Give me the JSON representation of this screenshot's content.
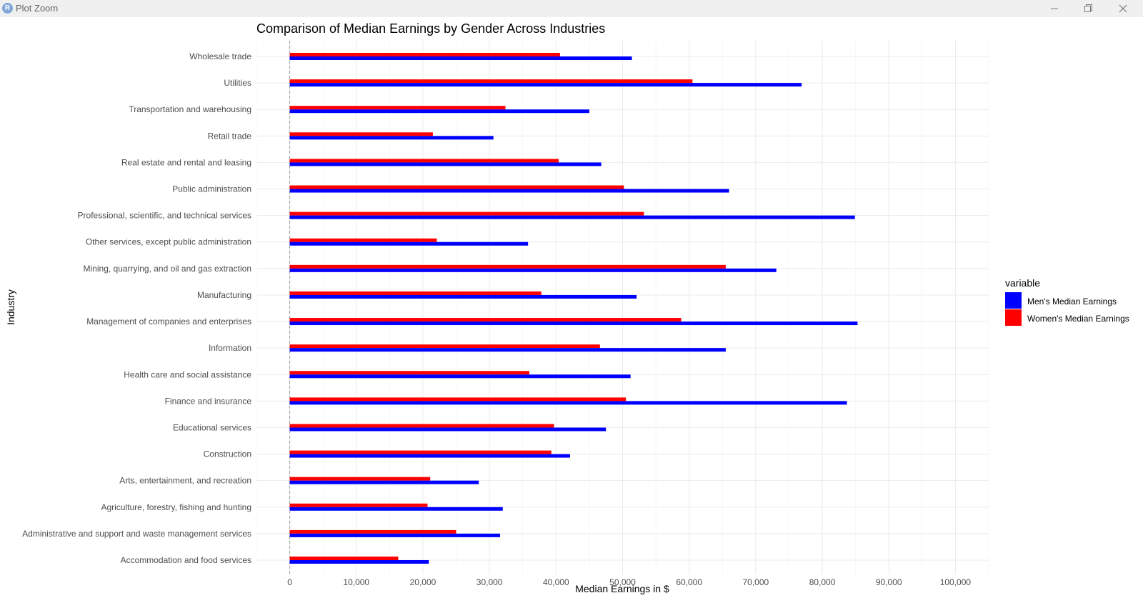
{
  "window": {
    "app_icon": "R",
    "title": "Plot Zoom",
    "controls": [
      "minimize-icon",
      "restore-icon",
      "close-icon"
    ]
  },
  "chart_data": {
    "type": "bar",
    "orientation": "horizontal",
    "title": "Comparison of Median Earnings by Gender Across Industries",
    "xlabel": "Median Earnings in $",
    "ylabel": "Industry",
    "xlim": [
      -5000,
      105000
    ],
    "xticks": [
      0,
      10000,
      20000,
      30000,
      40000,
      50000,
      60000,
      70000,
      80000,
      90000,
      100000
    ],
    "xtick_labels": [
      "0",
      "10,000",
      "20,000",
      "30,000",
      "40,000",
      "50,000",
      "60,000",
      "70,000",
      "80,000",
      "90,000",
      "100,000"
    ],
    "grid": true,
    "legend": {
      "title": "variable",
      "position": "right"
    },
    "categories": [
      "Wholesale trade",
      "Utilities",
      "Transportation and warehousing",
      "Retail trade",
      "Real estate and rental and leasing",
      "Public administration",
      "Professional, scientific, and technical services",
      "Other services, except public administration",
      "Mining, quarrying, and oil and gas extraction",
      "Manufacturing",
      "Management of companies and enterprises",
      "Information",
      "Health care and social assistance",
      "Finance and insurance",
      "Educational services",
      "Construction",
      "Arts, entertainment, and recreation",
      "Agriculture, forestry, fishing and hunting",
      "Administrative and support and waste management services",
      "Accommodation and food services"
    ],
    "series": [
      {
        "name": "Men's Median Earnings",
        "color": "#0000ff",
        "values": [
          51400,
          76900,
          45000,
          30600,
          46800,
          66000,
          84900,
          35800,
          73100,
          52100,
          85300,
          65500,
          51200,
          83700,
          47500,
          42100,
          28400,
          32000,
          31600,
          20900
        ]
      },
      {
        "name": "Women's Median Earnings",
        "color": "#ff0000",
        "values": [
          40600,
          60500,
          32400,
          21500,
          40400,
          50200,
          53200,
          22100,
          65500,
          37800,
          58800,
          46600,
          36000,
          50500,
          39700,
          39300,
          21100,
          20700,
          25000,
          16300
        ]
      }
    ]
  }
}
